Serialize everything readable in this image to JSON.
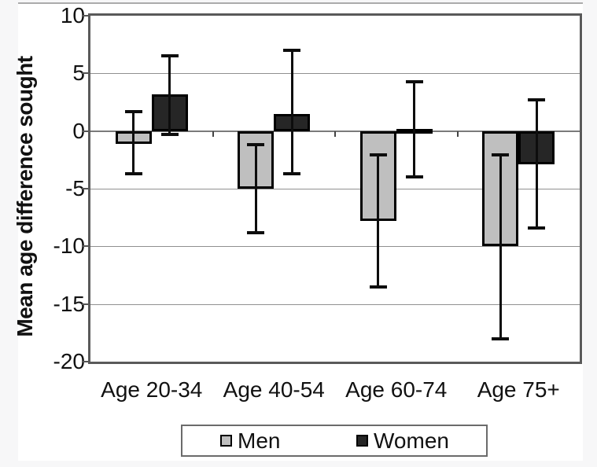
{
  "figure": {
    "background": "#f7f7f8",
    "canvas_background": "#ffffff",
    "frame_color": "#5a5a5a",
    "gridline_color": "#909090",
    "zero_line_color": "#7a7a7a",
    "error_bar_color": "#0d0d0d",
    "text_color": "#111111"
  },
  "y_axis": {
    "title": "Mean age difference sought",
    "tick_labels": [
      "10",
      "5",
      "0",
      "-5",
      "-10",
      "-15",
      "-20"
    ]
  },
  "x_axis": {
    "labels": [
      "Age 20-34",
      "Age 40-54",
      "Age 60-74",
      "Age 75+"
    ]
  },
  "legend": {
    "men_label": "Men",
    "women_label": "Women",
    "men_color": "#bfbfbf",
    "women_color": "#262626"
  },
  "chart_data": {
    "type": "bar",
    "title": "",
    "xlabel": "",
    "ylabel": "Mean age difference sought",
    "categories": [
      "Age 20-34",
      "Age 40-54",
      "Age 60-74",
      "Age 75+"
    ],
    "series": [
      {
        "name": "Men",
        "color": "#bfbfbf",
        "values": [
          -1.1,
          -5.0,
          -7.8,
          -10.0
        ],
        "ci_low": [
          -3.7,
          -8.8,
          -13.5,
          -18.0
        ],
        "ci_high": [
          1.7,
          -1.2,
          -2.1,
          -2.1
        ]
      },
      {
        "name": "Women",
        "color": "#262626",
        "values": [
          3.2,
          1.5,
          0.15,
          -2.9
        ],
        "ci_low": [
          -0.3,
          -3.7,
          -4.0,
          -8.4
        ],
        "ci_high": [
          6.5,
          7.0,
          4.3,
          2.7
        ]
      }
    ],
    "ylim": [
      -20,
      10
    ],
    "yticks": [
      10,
      5,
      0,
      -5,
      -10,
      -15,
      -20
    ],
    "ytick_interval": 5,
    "grid": true,
    "error_bars": true,
    "legend_position": "bottom"
  }
}
